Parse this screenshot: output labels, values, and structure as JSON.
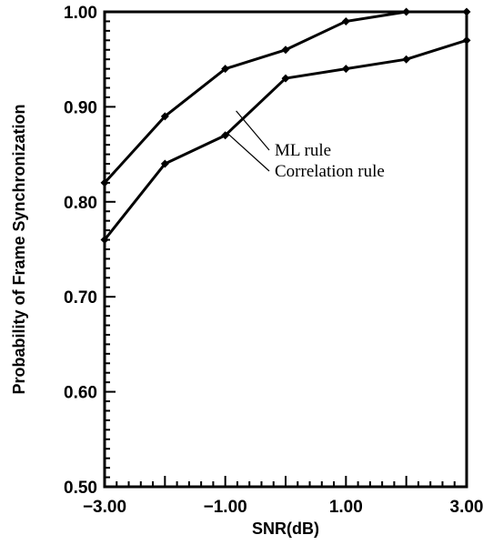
{
  "chart_data": {
    "type": "line",
    "xlabel": "SNR(dB)",
    "ylabel": "Probability of Frame Synchronization",
    "xlim": [
      -3,
      3
    ],
    "ylim": [
      0.5,
      1.0
    ],
    "x_ticks": [
      -3,
      -1,
      1,
      3
    ],
    "x_tick_labels": [
      "−3.00",
      "−1.00",
      "1.00",
      "3.00"
    ],
    "y_ticks": [
      0.5,
      0.6,
      0.7,
      0.8,
      0.9,
      1.0
    ],
    "y_tick_labels": [
      "0.50",
      "0.60",
      "0.70",
      "0.80",
      "0.90",
      "1.00"
    ],
    "grid": false,
    "legend": "inline annotations with leader lines",
    "x": [
      -3,
      -2,
      -1,
      0,
      1,
      2,
      3
    ],
    "series": [
      {
        "name": "ML rule",
        "values": [
          0.82,
          0.89,
          0.94,
          0.96,
          0.99,
          1.0,
          1.0
        ]
      },
      {
        "name": "Correlation rule",
        "values": [
          0.76,
          0.84,
          0.87,
          0.93,
          0.94,
          0.95,
          0.97
        ]
      }
    ]
  }
}
